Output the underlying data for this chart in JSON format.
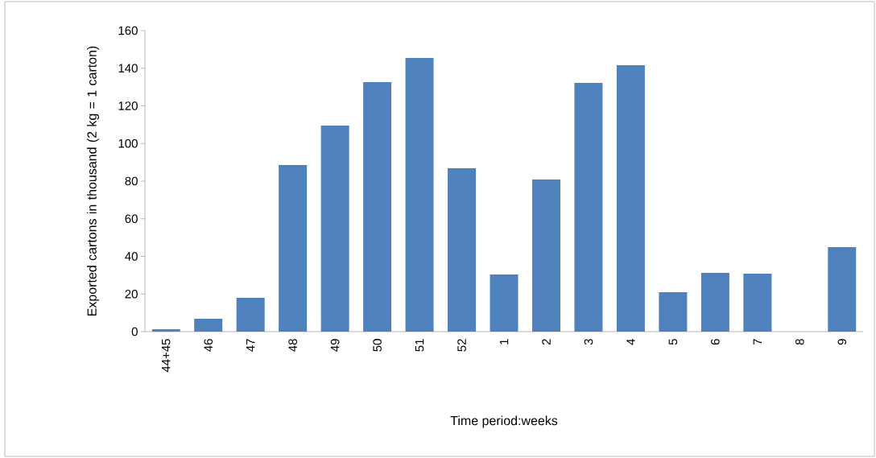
{
  "chart_data": {
    "type": "bar",
    "xlabel": "Time period:weeks",
    "ylabel": "Exported  cartons in thousand (2 kg = 1 carton)",
    "categories": [
      "44+45",
      "46",
      "47",
      "48",
      "49",
      "50",
      "51",
      "52",
      "1",
      "2",
      "3",
      "4",
      "5",
      "6",
      "7",
      "8",
      "9"
    ],
    "values": [
      1.3,
      6.8,
      18,
      88.6,
      109.5,
      132.6,
      145.5,
      86.8,
      30.4,
      80.9,
      132.2,
      141.6,
      21,
      31.2,
      30.8,
      0,
      44.9
    ],
    "color": "#4f81bd",
    "ylim": [
      0,
      160
    ],
    "yticks": [
      0,
      20,
      40,
      60,
      80,
      100,
      120,
      140,
      160
    ]
  }
}
